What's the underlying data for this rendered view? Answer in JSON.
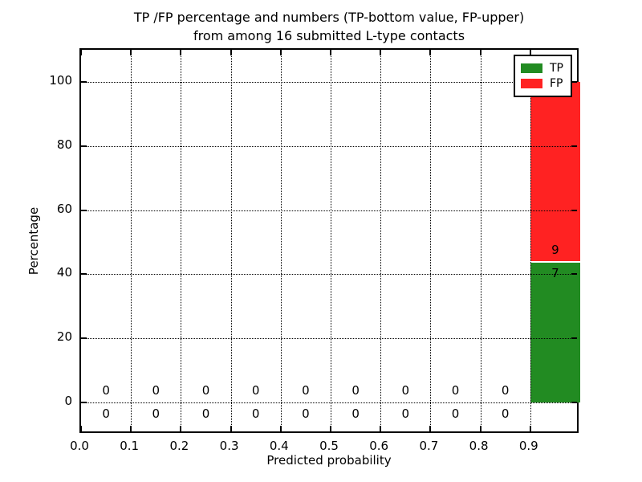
{
  "chart_data": {
    "type": "bar",
    "stacked": true,
    "title_line1": "TP /FP percentage and numbers (TP-bottom value, FP-upper)",
    "title_line2": "from among 16 submitted L-type contacts",
    "xlabel": "Predicted probability",
    "ylabel": "Percentage",
    "total_contacts": 16,
    "bin_width": 0.1,
    "categories": [
      "0.0-0.1",
      "0.1-0.2",
      "0.2-0.3",
      "0.3-0.4",
      "0.4-0.5",
      "0.5-0.6",
      "0.6-0.7",
      "0.7-0.8",
      "0.8-0.9",
      "0.9-1.0"
    ],
    "bin_left_edges": [
      0.0,
      0.1,
      0.2,
      0.3,
      0.4,
      0.5,
      0.6,
      0.7,
      0.8,
      0.9
    ],
    "series": [
      {
        "name": "TP",
        "color": "#228b22",
        "counts": [
          0,
          0,
          0,
          0,
          0,
          0,
          0,
          0,
          0,
          7
        ],
        "percent": [
          0,
          0,
          0,
          0,
          0,
          0,
          0,
          0,
          0,
          43.75
        ]
      },
      {
        "name": "FP",
        "color": "#ff2222",
        "counts": [
          0,
          0,
          0,
          0,
          0,
          0,
          0,
          0,
          0,
          9
        ],
        "percent": [
          0,
          0,
          0,
          0,
          0,
          0,
          0,
          0,
          0,
          56.25
        ]
      }
    ],
    "xlim": [
      0.0,
      1.0
    ],
    "ylim": [
      -10,
      110
    ],
    "x_tick_values": [
      0.0,
      0.1,
      0.2,
      0.3,
      0.4,
      0.5,
      0.6,
      0.7,
      0.8,
      0.9
    ],
    "x_tick_labels": [
      "0.0",
      "0.1",
      "0.2",
      "0.3",
      "0.4",
      "0.5",
      "0.6",
      "0.7",
      "0.8",
      "0.9"
    ],
    "y_tick_values": [
      0,
      20,
      40,
      60,
      80,
      100
    ],
    "y_tick_labels": [
      "0",
      "20",
      "40",
      "60",
      "80",
      "100"
    ],
    "grid": "dotted",
    "legend": {
      "position": "upper right",
      "entries": [
        {
          "label": "TP",
          "color": "#228b22"
        },
        {
          "label": "FP",
          "color": "#ff2222"
        }
      ]
    }
  }
}
